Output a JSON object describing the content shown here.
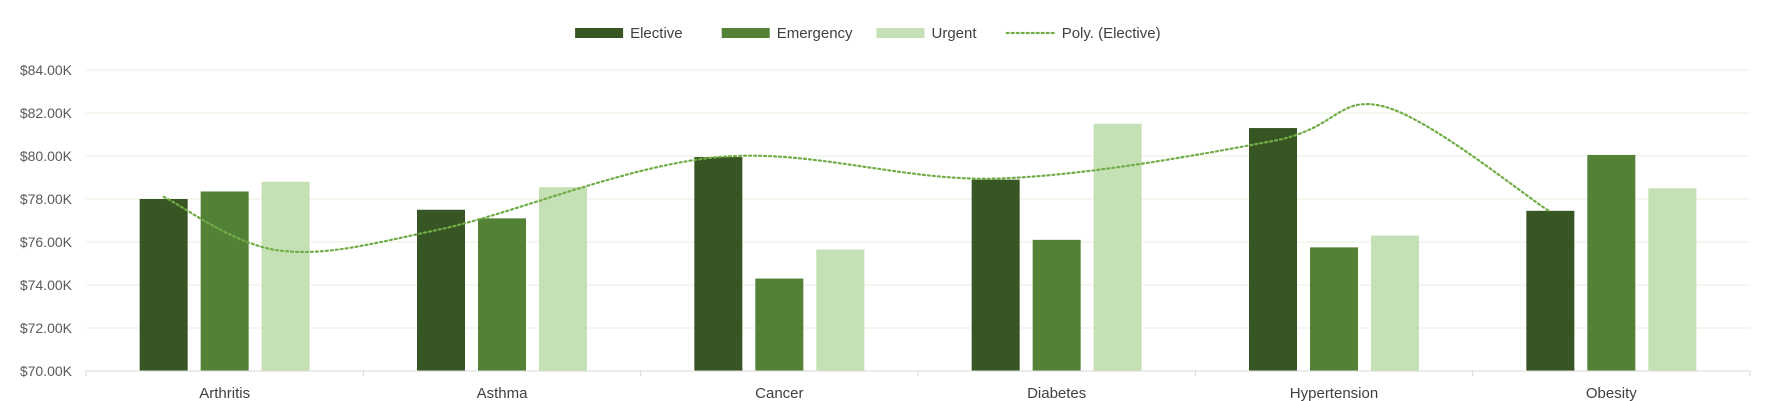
{
  "chart_data": {
    "type": "bar",
    "title": "",
    "xlabel": "",
    "ylabel": "",
    "ylim": [
      70000,
      84000
    ],
    "yticks": [
      70000,
      72000,
      74000,
      76000,
      78000,
      80000,
      82000,
      84000
    ],
    "ytick_labels": [
      "$70.00K",
      "$72.00K",
      "$74.00K",
      "$76.00K",
      "$78.00K",
      "$80.00K",
      "$82.00K",
      "$84.00K"
    ],
    "grid": true,
    "legend_position": "top-center",
    "categories": [
      "Arthritis",
      "Asthma",
      "Cancer",
      "Diabetes",
      "Hypertension",
      "Obesity"
    ],
    "series": [
      {
        "name": "Elective",
        "color": "#375623",
        "values": [
          78000,
          77500,
          79950,
          78900,
          81300,
          77450
        ]
      },
      {
        "name": "Emergency",
        "color": "#538135",
        "values": [
          78350,
          77100,
          74300,
          76100,
          75750,
          80050
        ]
      },
      {
        "name": "Urgent",
        "color": "#c5e0b4",
        "values": [
          78800,
          78550,
          75650,
          81500,
          76300,
          78500
        ]
      }
    ],
    "trendline": {
      "name": "Poly. (Elective)",
      "type": "polynomial",
      "of_series": "Elective",
      "color": "#70ad47",
      "values": [
        78100,
        75600,
        79950,
        78950,
        82300,
        77400
      ],
      "trough_at": [
        0.42,
        75600
      ],
      "peak_at": [
        4.4,
        82300
      ]
    }
  }
}
